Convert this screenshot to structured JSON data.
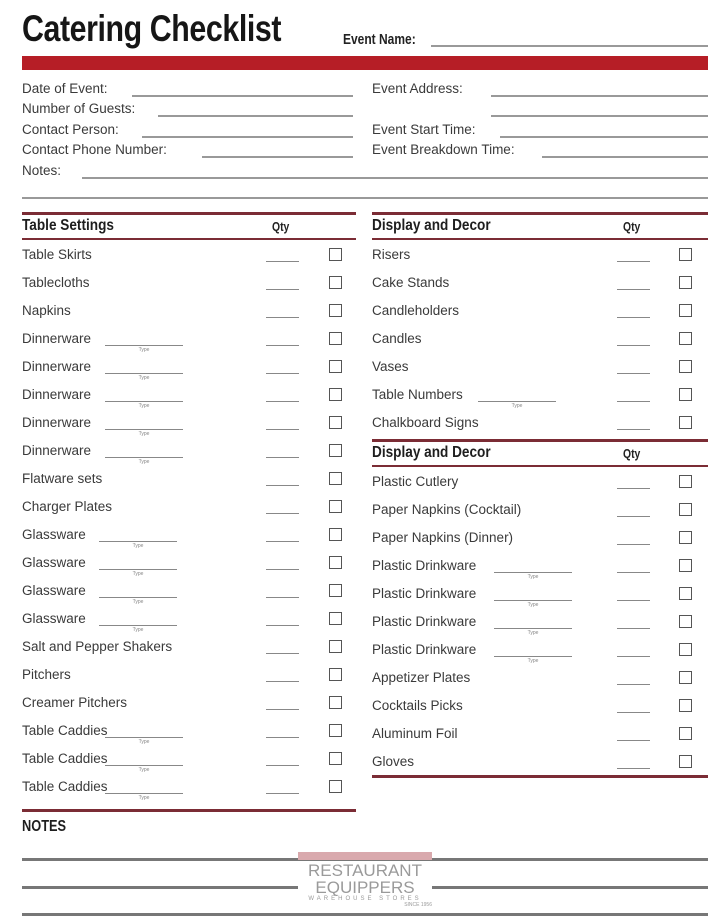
{
  "header": {
    "title": "Catering Checklist",
    "event_name_label": "Event Name:",
    "accent_color": "#b61e26"
  },
  "info_fields": {
    "left": [
      "Date of Event:",
      "Number of Guests:",
      "Contact Person:",
      "Contact Phone Number:"
    ],
    "right": [
      "Event Address:",
      "",
      "Event Start Time:",
      "Event Breakdown Time:"
    ],
    "notes_label": "Notes:"
  },
  "sections": [
    {
      "title": "Table Settings",
      "qty_label": "Qty",
      "items": [
        {
          "label": "Table Skirts"
        },
        {
          "label": "Tablecloths"
        },
        {
          "label": "Napkins"
        },
        {
          "label": "Dinnerware",
          "type_caption": "Type"
        },
        {
          "label": "Dinnerware",
          "type_caption": "Type"
        },
        {
          "label": "Dinnerware",
          "type_caption": "Type"
        },
        {
          "label": "Dinnerware",
          "type_caption": "Type"
        },
        {
          "label": "Dinnerware",
          "type_caption": "Type"
        },
        {
          "label": "Flatware sets"
        },
        {
          "label": "Charger Plates"
        },
        {
          "label": "Glassware",
          "type_caption": "Type"
        },
        {
          "label": "Glassware",
          "type_caption": "Type"
        },
        {
          "label": "Glassware",
          "type_caption": "Type"
        },
        {
          "label": "Glassware",
          "type_caption": "Type"
        },
        {
          "label": "Salt and Pepper Shakers"
        },
        {
          "label": "Pitchers"
        },
        {
          "label": "Creamer Pitchers"
        },
        {
          "label": "Table Caddies",
          "type_caption": "Type"
        },
        {
          "label": "Table Caddies",
          "type_caption": "Type"
        },
        {
          "label": "Table Caddies",
          "type_caption": "Type"
        }
      ]
    },
    {
      "title": "Display and Decor",
      "qty_label": "Qty",
      "items": [
        {
          "label": "Risers"
        },
        {
          "label": "Cake Stands"
        },
        {
          "label": "Candleholders"
        },
        {
          "label": "Candles"
        },
        {
          "label": "Vases"
        },
        {
          "label": "Table Numbers",
          "type_caption": "Type"
        },
        {
          "label": "Chalkboard Signs"
        }
      ]
    },
    {
      "title": "Display and Decor",
      "qty_label": "Qty",
      "items": [
        {
          "label": "Plastic Cutlery"
        },
        {
          "label": "Paper Napkins (Cocktail)"
        },
        {
          "label": "Paper Napkins (Dinner)"
        },
        {
          "label": "Plastic Drinkware",
          "type_caption": "Type"
        },
        {
          "label": "Plastic Drinkware",
          "type_caption": "Type"
        },
        {
          "label": "Plastic Drinkware",
          "type_caption": "Type"
        },
        {
          "label": "Plastic Drinkware",
          "type_caption": "Type"
        },
        {
          "label": "Appetizer Plates"
        },
        {
          "label": "Cocktails Picks"
        },
        {
          "label": "Aluminum Foil"
        },
        {
          "label": "Gloves"
        }
      ]
    }
  ],
  "notes": {
    "title": "NOTES"
  },
  "logo": {
    "line1": "RESTAURANT",
    "line2": "EQUIPPERS",
    "line3": "WAREHOUSE STORES",
    "line4": "SINCE 1956"
  }
}
